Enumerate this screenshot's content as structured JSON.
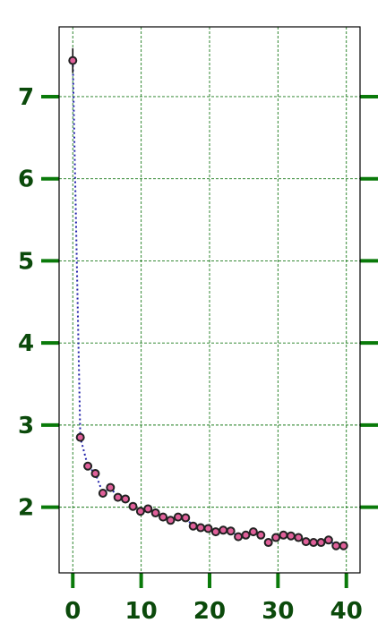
{
  "chart_data": {
    "type": "scatter",
    "title": "",
    "xlabel": "",
    "ylabel": "",
    "xlim": [
      -2,
      42
    ],
    "ylim": [
      1.2,
      7.85
    ],
    "xticks": [
      0,
      10,
      20,
      30,
      40
    ],
    "yticks": [
      2,
      3,
      4,
      5,
      6,
      7
    ],
    "xtick_labels": [
      "0",
      "10",
      "20",
      "30",
      "40"
    ],
    "ytick_labels": [
      "2",
      "3",
      "4",
      "5",
      "6",
      "7"
    ],
    "grid": true,
    "legend": "none",
    "colors": {
      "grid": "#1a7a1a",
      "ticks": "#0a7a0a",
      "tick_labels": "#0b4a0b",
      "line": "#2222aa",
      "marker_fill": "#e0609a",
      "marker_edge": "#222222",
      "frame": "#000000"
    },
    "series": [
      {
        "x": [
          0,
          1.1,
          2.2,
          3.3,
          4.4,
          5.5,
          6.6,
          7.7,
          8.8,
          9.9,
          11,
          12.1,
          13.2,
          14.3,
          15.4,
          16.5,
          17.6,
          18.7,
          19.8,
          20.9,
          22,
          23.1,
          24.2,
          25.3,
          26.4,
          27.5,
          28.6,
          29.7,
          30.8,
          31.9,
          33,
          34.1,
          35.2,
          36.3,
          37.4,
          38.5,
          39.6
        ],
        "y": [
          7.44,
          2.85,
          2.5,
          2.41,
          2.17,
          2.24,
          2.12,
          2.1,
          2.01,
          1.95,
          1.98,
          1.93,
          1.88,
          1.84,
          1.88,
          1.87,
          1.77,
          1.75,
          1.74,
          1.7,
          1.72,
          1.71,
          1.64,
          1.66,
          1.7,
          1.66,
          1.57,
          1.63,
          1.66,
          1.65,
          1.63,
          1.58,
          1.57,
          1.57,
          1.6,
          1.53,
          1.53
        ],
        "error": [
          0.15,
          0,
          0,
          0,
          0,
          0,
          0,
          0,
          0,
          0,
          0,
          0,
          0,
          0,
          0,
          0,
          0,
          0,
          0,
          0,
          0,
          0,
          0,
          0,
          0,
          0,
          0,
          0,
          0,
          0,
          0,
          0,
          0,
          0,
          0,
          0,
          0
        ]
      }
    ]
  }
}
